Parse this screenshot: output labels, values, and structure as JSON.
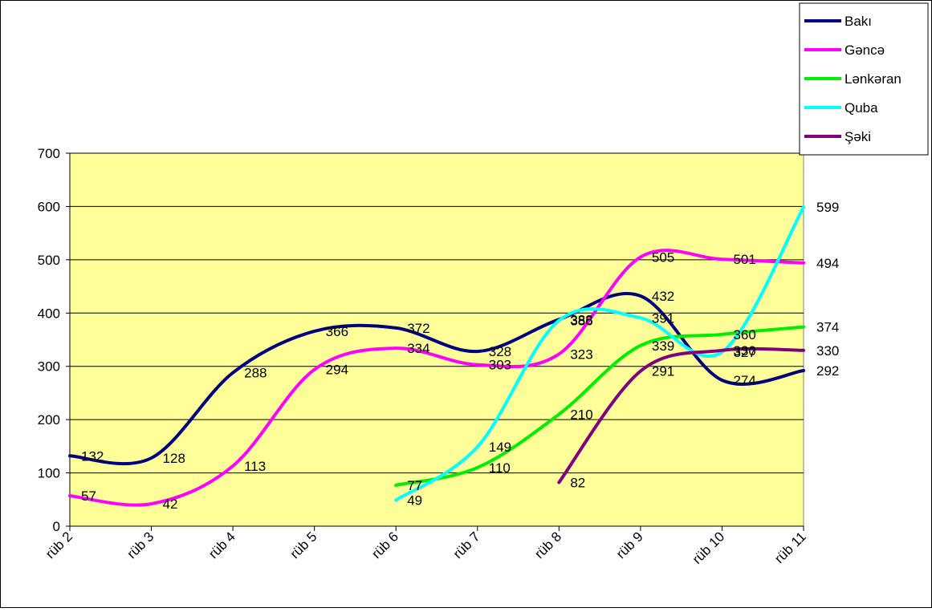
{
  "chart_data": {
    "type": "line",
    "title": "",
    "xlabel": "",
    "ylabel": "",
    "ylim": [
      0,
      700
    ],
    "yticks": [
      0,
      100,
      200,
      300,
      400,
      500,
      600,
      700
    ],
    "categories": [
      "rüb 2",
      "rüb 3",
      "rüb 4",
      "rüb 5",
      "rüb 6",
      "rüb 7",
      "rüb 8",
      "rüb 9",
      "rüb 10",
      "rüb 11"
    ],
    "grid": true,
    "legend_position": "top-right",
    "plot_background": "#FFFF99",
    "series": [
      {
        "name": "Bakı",
        "color": "#000080",
        "values": [
          132,
          128,
          288,
          366,
          372,
          328,
          388,
          432,
          274,
          292
        ],
        "labels": [
          "132",
          "128",
          "288",
          "366",
          "372",
          "328",
          "388",
          "432",
          "274",
          "292"
        ]
      },
      {
        "name": "Gəncə",
        "color": "#FF00FF",
        "values": [
          57,
          42,
          113,
          294,
          334,
          303,
          323,
          505,
          501,
          494
        ],
        "labels": [
          "57",
          "42",
          "113",
          "294",
          "334",
          "303",
          "323",
          "505",
          "501",
          "494"
        ]
      },
      {
        "name": "Lənkəran",
        "color": "#00EE00",
        "values": [
          null,
          null,
          null,
          null,
          77,
          110,
          210,
          339,
          360,
          374
        ],
        "labels": [
          "",
          "",
          "",
          "",
          "77",
          "110",
          "210",
          "339",
          "360",
          "374"
        ]
      },
      {
        "name": "Quba",
        "color": "#00FFFF",
        "values": [
          null,
          null,
          null,
          null,
          49,
          149,
          386,
          391,
          327,
          599
        ],
        "labels": [
          "",
          "",
          "",
          "",
          "49",
          "149",
          "386",
          "391",
          "327",
          "599"
        ]
      },
      {
        "name": "Şəki",
        "color": "#800080",
        "values": [
          null,
          null,
          null,
          null,
          null,
          null,
          82,
          291,
          330,
          330
        ],
        "labels": [
          "",
          "",
          "",
          "",
          "",
          "",
          "82",
          "291",
          "330",
          "330"
        ]
      }
    ]
  }
}
